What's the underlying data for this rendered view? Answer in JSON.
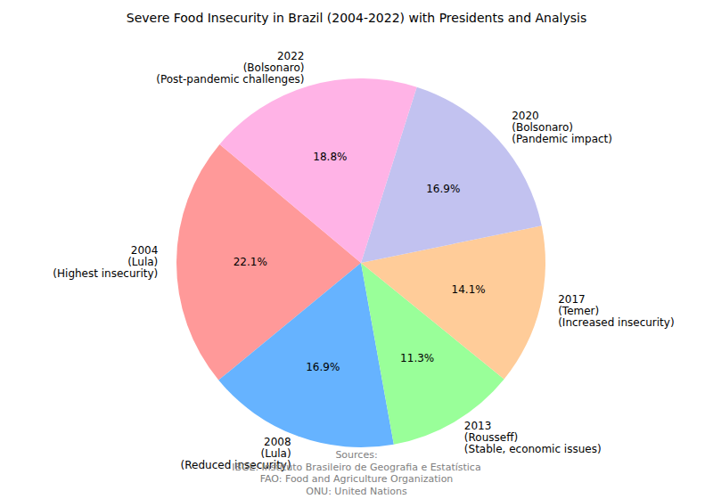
{
  "chart_data": {
    "type": "pie",
    "title": "Severe Food Insecurity in Brazil (2004-2022) with Presidents and Analysis",
    "categories": [
      "2004",
      "2008",
      "2013",
      "2017",
      "2020",
      "2022"
    ],
    "presidents": [
      "(Lula)",
      "(Lula)",
      "(Rousseff)",
      "(Temer)",
      "(Bolsonaro)",
      "(Bolsonaro)"
    ],
    "analysis": [
      "(Highest insecurity)",
      "(Reduced insecurity)",
      "(Stable, economic issues)",
      "(Increased insecurity)",
      "(Pandemic impact)",
      "(Post-pandemic challenges)"
    ],
    "values": [
      22.1,
      16.9,
      11.3,
      14.1,
      16.9,
      18.8
    ],
    "value_labels": [
      "22.1%",
      "16.9%",
      "11.3%",
      "14.1%",
      "16.9%",
      "18.8%"
    ],
    "data_labels": true,
    "colors": [
      "#ff9999",
      "#66b3ff",
      "#99ff99",
      "#ffcc99",
      "#c2c2f0",
      "#ffb3e6"
    ],
    "sources_title": "Sources:",
    "sources": [
      "IBGE: Instituto Brasileiro de Geografia e Estatística",
      "FAO: Food and Agriculture Organization",
      "ONU: United Nations"
    ]
  }
}
